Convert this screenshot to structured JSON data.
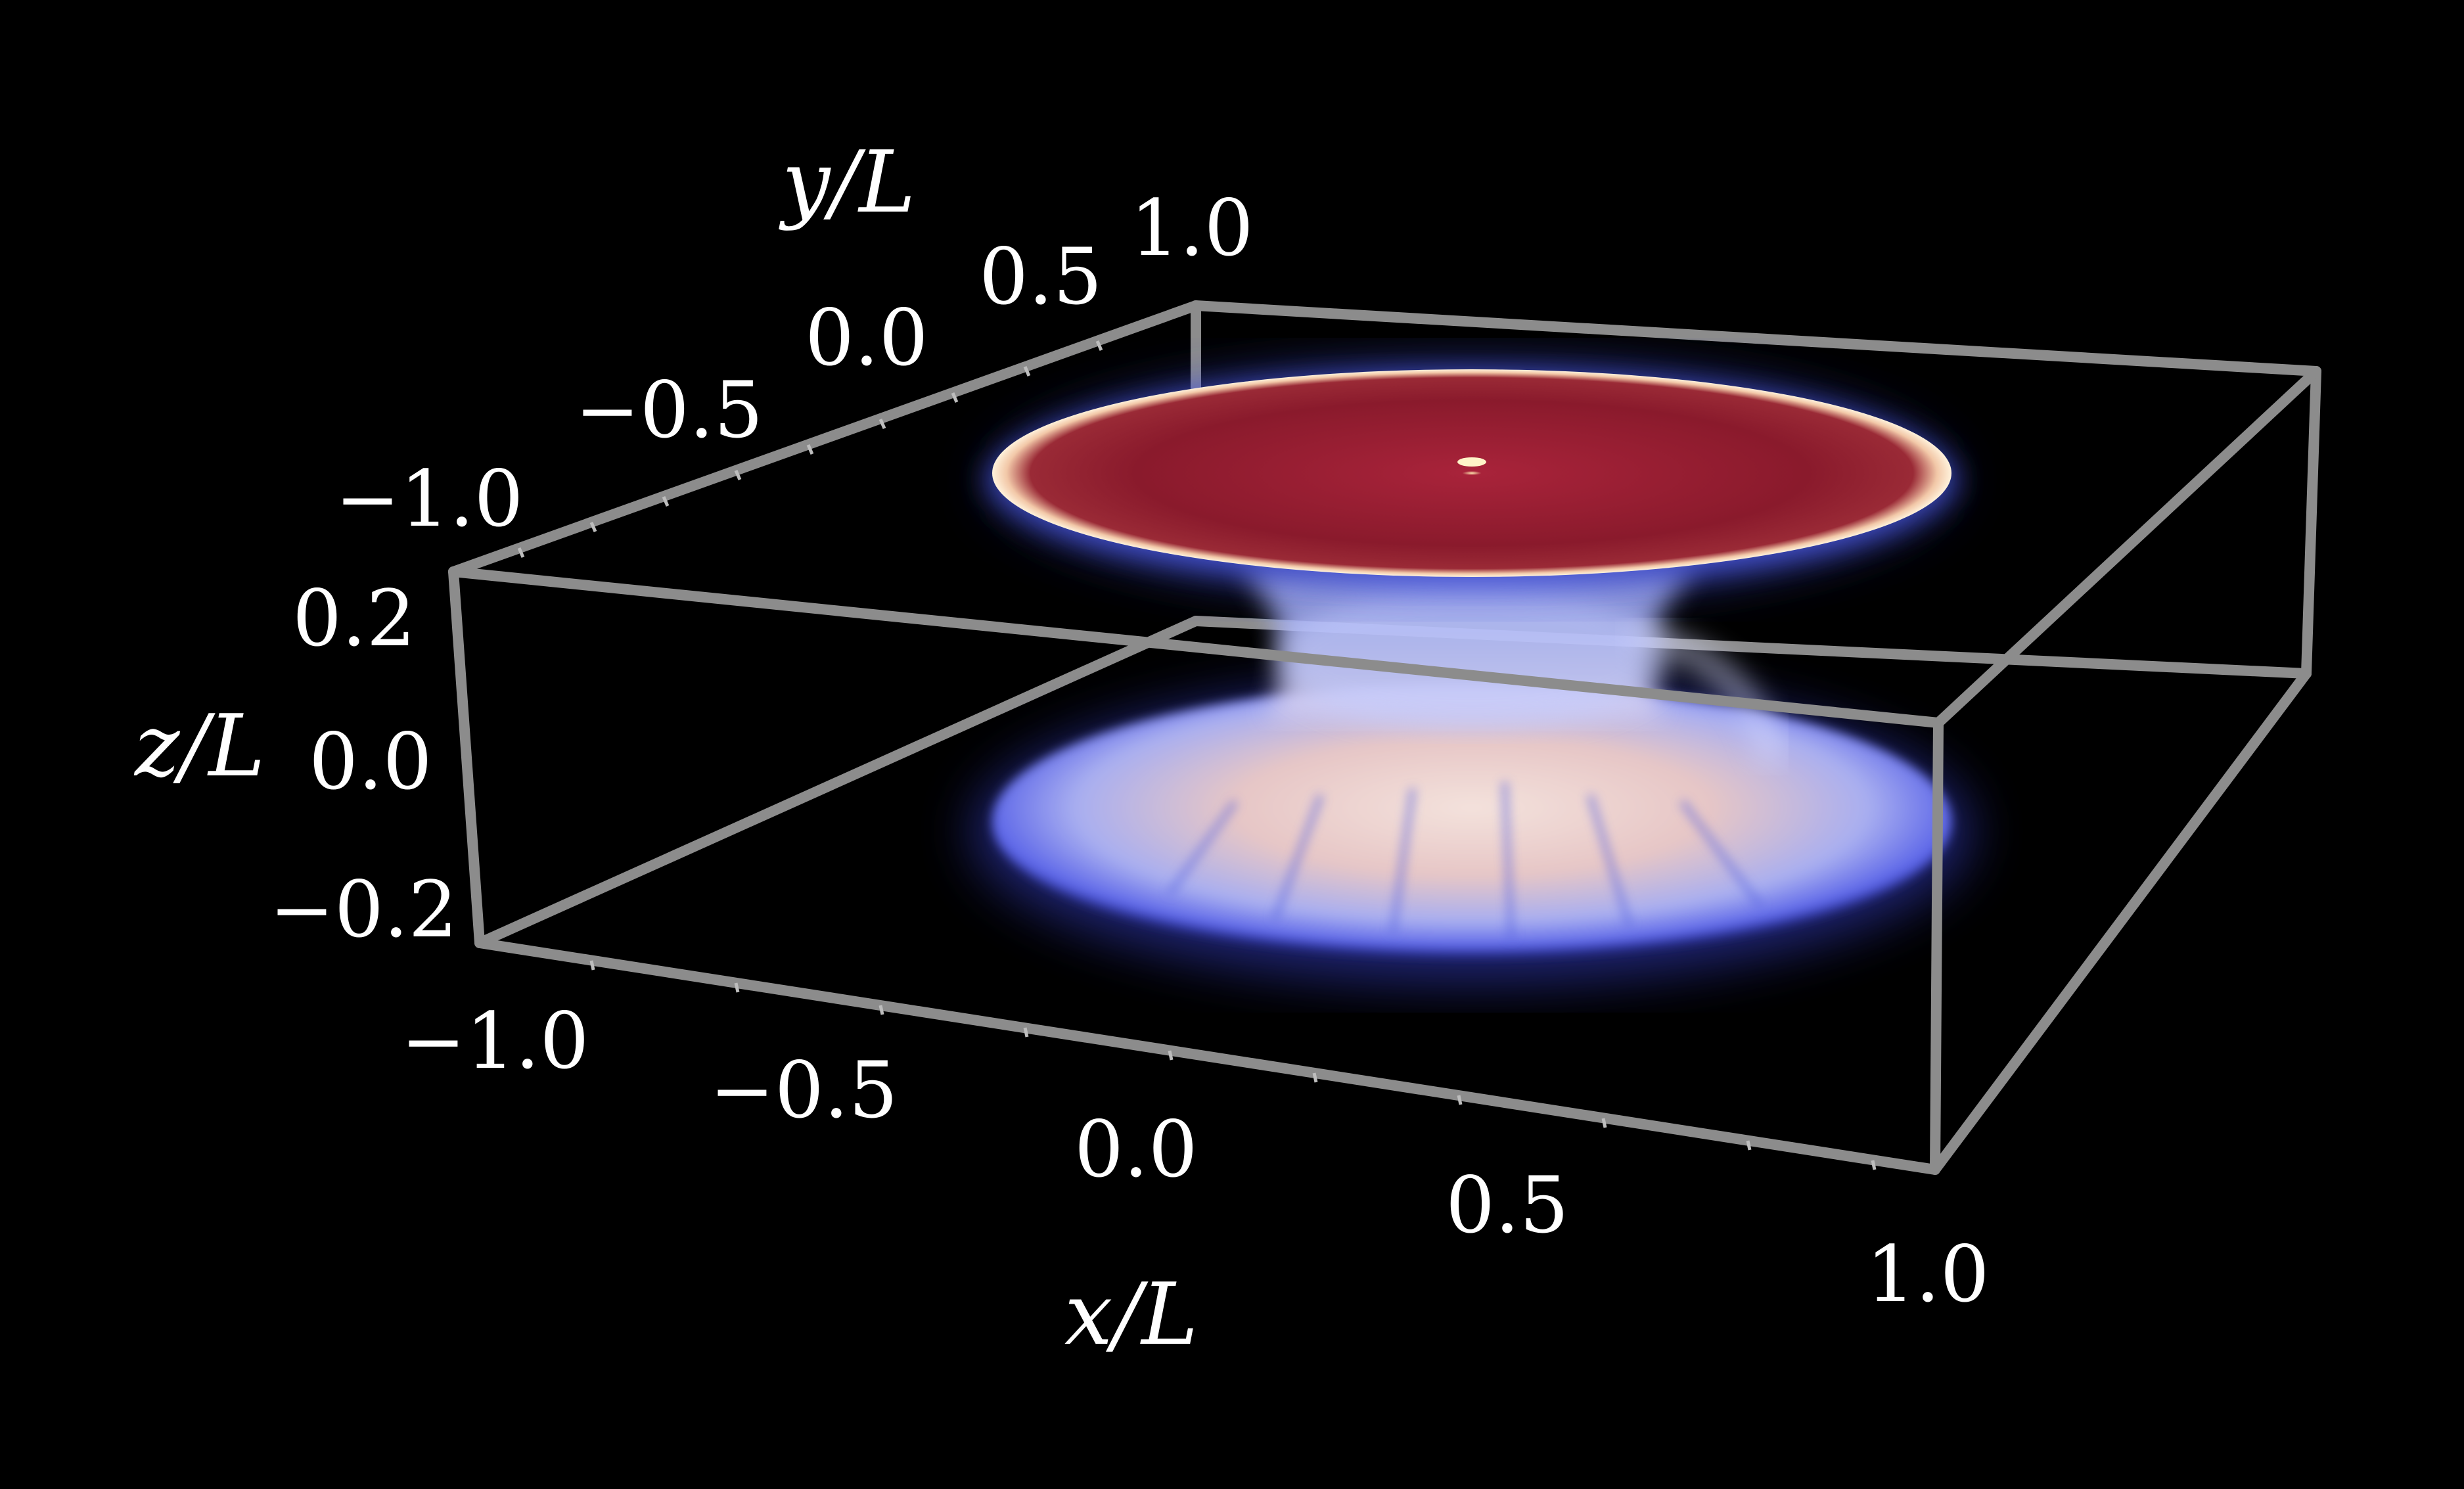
{
  "figure": {
    "x_axis": {
      "label": "x/L",
      "ticks": [
        "−1.0",
        "−0.5",
        "0.0",
        "0.5",
        "1.0"
      ]
    },
    "y_axis": {
      "label": "y/L",
      "ticks": [
        "−1.0",
        "−0.5",
        "0.0",
        "0.5",
        "1.0"
      ]
    },
    "z_axis": {
      "label": "z/L",
      "ticks": [
        "0.2",
        "0.0",
        "−0.2"
      ]
    },
    "colors": {
      "background": "#000000",
      "box": "#8c8c8c",
      "disk_top": "#8a1a2c",
      "disk_rim": "#fbe9c8",
      "halo_blue": "#4a58e0",
      "bottom_lobe": "#e8c8c4"
    }
  }
}
